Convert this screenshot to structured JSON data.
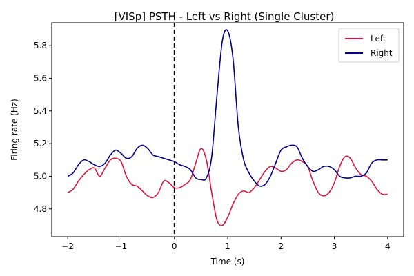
{
  "chart_data": {
    "type": "line",
    "title": "[VISp] PSTH - Left vs Right (Single Cluster)",
    "xlabel": "Time (s)",
    "ylabel": "Firing rate (Hz)",
    "xlim": [
      -2.3,
      4.3
    ],
    "ylim": [
      4.63,
      5.94
    ],
    "xticks": [
      -2,
      -1,
      0,
      1,
      2,
      3,
      4
    ],
    "xtick_labels": [
      "−2",
      "−1",
      "0",
      "1",
      "2",
      "3",
      "4"
    ],
    "yticks": [
      4.8,
      5.0,
      5.2,
      5.4,
      5.6,
      5.8
    ],
    "ytick_labels": [
      "4.8",
      "5.0",
      "5.2",
      "5.4",
      "5.6",
      "5.8"
    ],
    "grid": false,
    "legend": {
      "position": "top-right"
    },
    "vline": {
      "x": 0,
      "style": "dashed",
      "color": "#000000"
    },
    "x": [
      -2.0,
      -1.9,
      -1.8,
      -1.7,
      -1.6,
      -1.5,
      -1.4,
      -1.3,
      -1.2,
      -1.1,
      -1.0,
      -0.9,
      -0.8,
      -0.7,
      -0.6,
      -0.5,
      -0.4,
      -0.3,
      -0.2,
      -0.1,
      0.0,
      0.1,
      0.2,
      0.3,
      0.4,
      0.5,
      0.6,
      0.7,
      0.8,
      0.9,
      1.0,
      1.1,
      1.2,
      1.3,
      1.4,
      1.5,
      1.6,
      1.7,
      1.8,
      1.9,
      2.0,
      2.1,
      2.2,
      2.3,
      2.4,
      2.5,
      2.6,
      2.7,
      2.8,
      2.9,
      3.0,
      3.1,
      3.2,
      3.3,
      3.4,
      3.5,
      3.6,
      3.7,
      3.8,
      3.9,
      4.0
    ],
    "series": [
      {
        "name": "Left",
        "color": "#dc143c",
        "values": [
          4.9,
          4.92,
          4.97,
          5.01,
          5.04,
          5.05,
          5.0,
          5.05,
          5.1,
          5.11,
          5.09,
          5.0,
          4.95,
          4.94,
          4.91,
          4.88,
          4.87,
          4.9,
          4.97,
          4.96,
          4.93,
          4.93,
          4.95,
          4.98,
          5.08,
          5.17,
          5.1,
          4.9,
          4.73,
          4.7,
          4.75,
          4.83,
          4.89,
          4.91,
          4.9,
          4.93,
          4.98,
          5.03,
          5.06,
          5.05,
          5.03,
          5.04,
          5.08,
          5.1,
          5.09,
          5.06,
          4.97,
          4.9,
          4.88,
          4.9,
          4.96,
          5.06,
          5.12,
          5.11,
          5.05,
          5.01,
          5.0,
          4.97,
          4.92,
          4.89,
          4.89
        ]
      },
      {
        "name": "Right",
        "color": "#00008b",
        "values": [
          5.0,
          5.02,
          5.07,
          5.1,
          5.09,
          5.07,
          5.06,
          5.08,
          5.13,
          5.16,
          5.14,
          5.11,
          5.12,
          5.17,
          5.19,
          5.17,
          5.13,
          5.12,
          5.11,
          5.1,
          5.09,
          5.07,
          5.06,
          5.04,
          4.99,
          4.98,
          4.99,
          5.12,
          5.5,
          5.83,
          5.89,
          5.72,
          5.3,
          5.1,
          5.02,
          4.97,
          4.94,
          4.95,
          5.0,
          5.08,
          5.16,
          5.18,
          5.19,
          5.18,
          5.11,
          5.06,
          5.03,
          5.04,
          5.06,
          5.06,
          5.04,
          5.0,
          4.99,
          4.99,
          5.0,
          5.0,
          5.02,
          5.08,
          5.1,
          5.1,
          5.1
        ]
      }
    ]
  }
}
